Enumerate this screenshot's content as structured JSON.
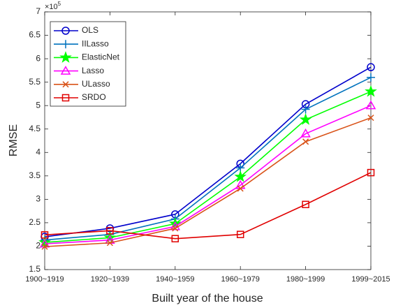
{
  "chart_data": {
    "type": "line",
    "xlabel": "Built year of the house",
    "ylabel": "RMSE",
    "y_multiplier": "×10",
    "y_multiplier_exponent": "5",
    "categories": [
      "1900~1919",
      "1920~1939",
      "1940~1959",
      "1960~1979",
      "1980~1999",
      "1999~2015"
    ],
    "ylim": [
      1.5,
      7
    ],
    "yticks": [
      1.5,
      2,
      2.5,
      3,
      3.5,
      4,
      4.5,
      5,
      5.5,
      6,
      6.5,
      7
    ],
    "legend": "upper-left",
    "series": [
      {
        "name": "OLS",
        "color": "#0000cc",
        "marker": "circle",
        "values": [
          2.2,
          2.38,
          2.68,
          3.76,
          5.03,
          5.82
        ]
      },
      {
        "name": "IILasso",
        "color": "#0072bd",
        "marker": "plus",
        "values": [
          2.13,
          2.25,
          2.58,
          3.67,
          4.92,
          5.6
        ]
      },
      {
        "name": "ElasticNet",
        "color": "#00ff00",
        "marker": "star",
        "values": [
          2.08,
          2.18,
          2.48,
          3.48,
          4.7,
          5.3
        ]
      },
      {
        "name": "Lasso",
        "color": "#ff00ff",
        "marker": "triangle",
        "values": [
          2.05,
          2.13,
          2.42,
          3.3,
          4.4,
          5.0
        ]
      },
      {
        "name": "ULasso",
        "color": "#d95319",
        "marker": "x",
        "values": [
          1.99,
          2.07,
          2.38,
          3.23,
          4.23,
          4.74
        ]
      },
      {
        "name": "SRDO",
        "color": "#e00000",
        "marker": "square",
        "values": [
          2.24,
          2.33,
          2.16,
          2.25,
          2.89,
          3.57
        ]
      }
    ]
  }
}
